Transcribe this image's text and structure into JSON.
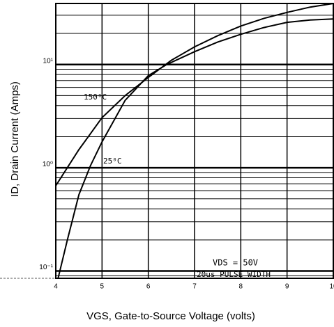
{
  "chart_data": {
    "type": "line",
    "xlabel": "VGS, Gate-to-Source Voltage (volts)",
    "ylabel": "ID, Drain Current (Amps)",
    "annotations": [
      "150⁰C",
      "25⁰C",
      "VDS = 50V",
      "20us PULSE WIDTH"
    ],
    "xlim": [
      4,
      10
    ],
    "xticks": [
      4,
      5,
      6,
      7,
      8,
      9,
      10
    ],
    "ylim": [
      0.085,
      39
    ],
    "log_y": true,
    "grid": true,
    "yticks": [
      {
        "value": 0.1,
        "label": "10⁻¹"
      },
      {
        "value": 1,
        "label": "10⁰"
      },
      {
        "value": 10,
        "label": "10¹"
      }
    ],
    "yminorticks": [
      0.09,
      0.2,
      0.3,
      0.4,
      0.5,
      0.6,
      0.7,
      0.8,
      0.9,
      2,
      3,
      4,
      5,
      6,
      7,
      8,
      9,
      20,
      30
    ],
    "series": [
      {
        "name": "150⁰C",
        "color": "#000000",
        "x": [
          4,
          4.5,
          5,
          5.5,
          6,
          6.5,
          7,
          7.5,
          8,
          8.5,
          9,
          9.5,
          10
        ],
        "values": [
          0.67,
          1.5,
          3.05,
          5,
          7.5,
          11,
          14.8,
          19,
          23.6,
          28,
          32,
          36,
          39
        ]
      },
      {
        "name": "25⁰C",
        "color": "#000000",
        "x": [
          4.05,
          4.25,
          4.5,
          4.75,
          5,
          5.5,
          6,
          6.4,
          7,
          7.5,
          8,
          8.5,
          9,
          9.5,
          10
        ],
        "values": [
          0.085,
          0.2,
          0.55,
          1.05,
          1.78,
          4.5,
          7.8,
          10,
          13.3,
          16.5,
          19.6,
          22.8,
          25.6,
          27,
          27.6
        ]
      }
    ]
  }
}
